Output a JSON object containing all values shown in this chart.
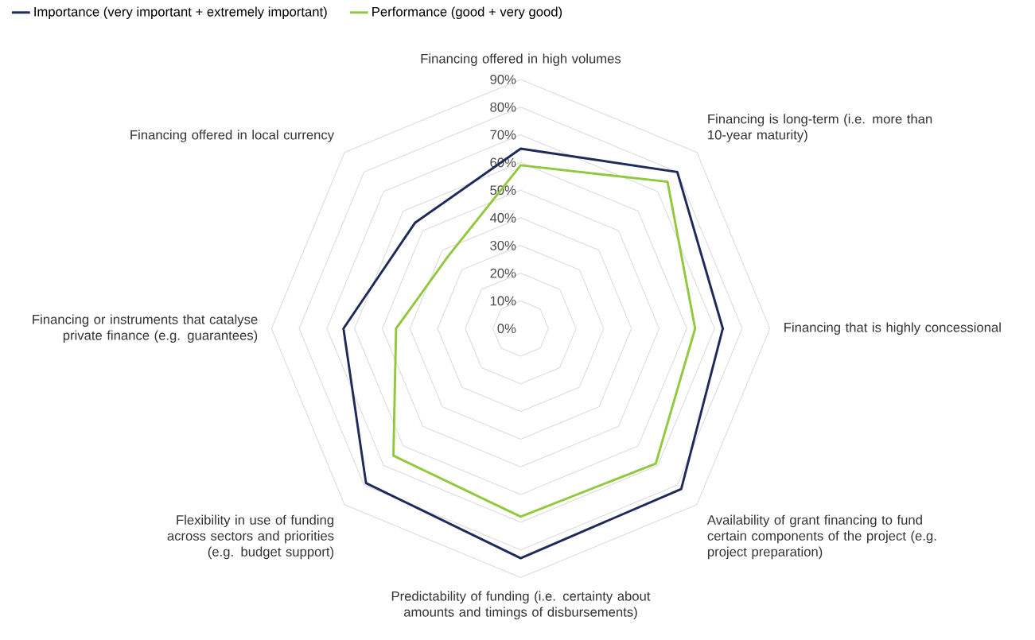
{
  "chart_data": {
    "type": "radar",
    "categories": [
      "Financing offered in high volumes",
      "Financing is long-term (i.e. more than 10-year maturity)",
      "Financing that is highly concessional",
      "Availability of grant financing to fund certain components of the project (e.g. project preparation)",
      "Predictability of funding (i.e. certainty about amounts and timings of disbursements)",
      "Flexibility in use of funding across sectors and priorities (e.g. budget support)",
      "Financing or instruments that catalyse private finance (e.g. guarantees)",
      "Financing offered in local currency"
    ],
    "series": [
      {
        "name": "Importance (very important + extremely important)",
        "color": "#1f2a5c",
        "values": [
          65,
          80,
          73,
          82,
          83,
          79,
          64,
          54
        ]
      },
      {
        "name": "Performance (good + very good)",
        "color": "#92c83e",
        "values": [
          59,
          75,
          63,
          69,
          68,
          65,
          45,
          37
        ]
      }
    ],
    "ylim": [
      0,
      90
    ],
    "yticks": [
      {
        "value": 0,
        "label": "0%"
      },
      {
        "value": 10,
        "label": "10%"
      },
      {
        "value": 20,
        "label": "20%"
      },
      {
        "value": 30,
        "label": "30%"
      },
      {
        "value": 40,
        "label": "40%"
      },
      {
        "value": 50,
        "label": "50%"
      },
      {
        "value": 60,
        "label": "60%"
      },
      {
        "value": 70,
        "label": "70%"
      },
      {
        "value": 80,
        "label": "80%"
      },
      {
        "value": 90,
        "label": "90%"
      }
    ],
    "grid": true,
    "legend": "top left"
  }
}
